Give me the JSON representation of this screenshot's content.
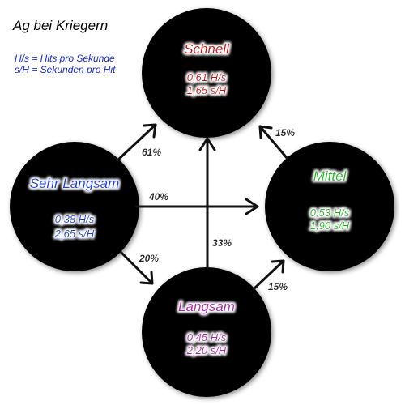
{
  "title": "Ag bei Kriegern",
  "legend": [
    "H/s = Hits pro Sekunde",
    "s/H = Sekunden pro Hit"
  ],
  "colors": {
    "node_fill": "#000000",
    "arrow": "#111111",
    "schnell": "#cc1111",
    "mittel": "#22bb22",
    "langsam": "#b020b0",
    "sehr_langsam": "#1540e0"
  },
  "nodes": {
    "schnell": {
      "name": "Schnell",
      "hs": "0,61  H/s",
      "sh": "1,65  s/H"
    },
    "mittel": {
      "name": "Mittel",
      "hs": "0,53  H/s",
      "sh": "1,90  s/H"
    },
    "langsam": {
      "name": "Langsam",
      "hs": "0,45  H/s",
      "sh": "2,20  s/H"
    },
    "sehr_langsam": {
      "name": "Sehr Langsam",
      "hs": "0,38  H/s",
      "sh": "2,65  s/H"
    }
  },
  "edges": {
    "sehr_langsam_to_schnell": "61%",
    "sehr_langsam_to_mittel": "40%",
    "sehr_langsam_to_langsam": "20%",
    "langsam_to_schnell": "33%",
    "langsam_to_mittel": "15%",
    "mittel_to_schnell": "15%"
  }
}
